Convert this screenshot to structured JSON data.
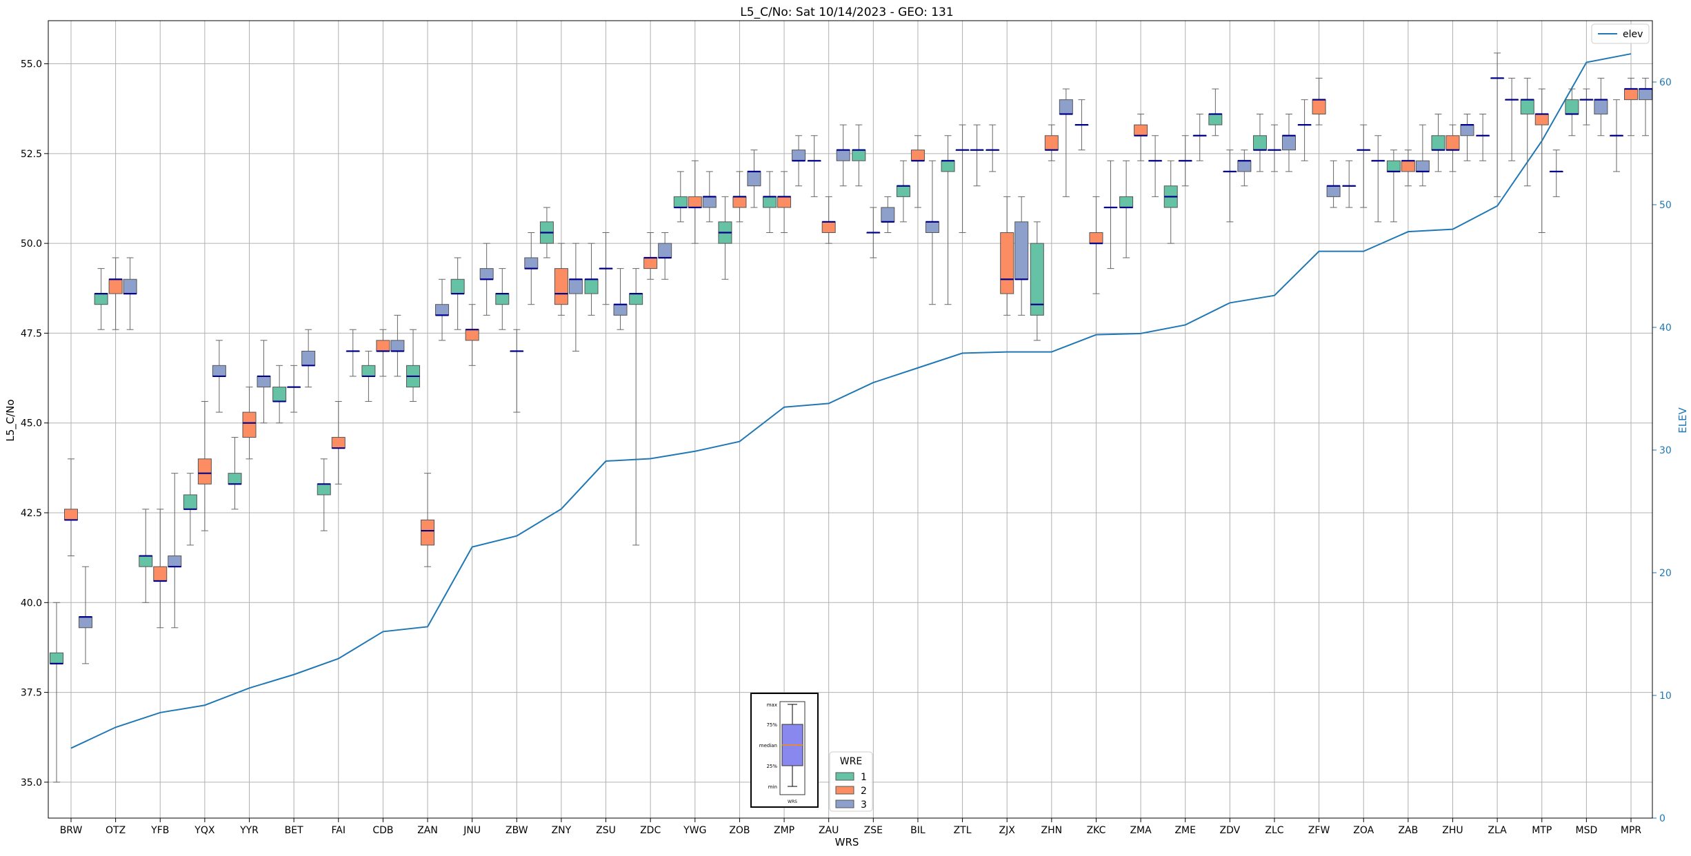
{
  "chart_data": {
    "type": "boxplot",
    "title": "L5_C/No: Sat 10/14/2023 - GEO: 131",
    "xlabel": "WRS",
    "ylabel": "L5_C/No",
    "y2label": "ELEV",
    "ylim": [
      34,
      56.2
    ],
    "y2lim": [
      0,
      65
    ],
    "yticks": [
      "35.0",
      "37.5",
      "40.0",
      "42.5",
      "45.0",
      "47.5",
      "50.0",
      "52.5",
      "55.0"
    ],
    "y2ticks": [
      "0",
      "10",
      "20",
      "30",
      "40",
      "50",
      "60"
    ],
    "grid": true,
    "categories": [
      "BRW",
      "OTZ",
      "YFB",
      "YQX",
      "YYR",
      "BET",
      "FAI",
      "CDB",
      "ZAN",
      "JNU",
      "ZBW",
      "ZNY",
      "ZSU",
      "ZDC",
      "YWG",
      "ZOB",
      "ZMP",
      "ZAU",
      "ZSE",
      "BIL",
      "ZTL",
      "ZJX",
      "ZHN",
      "ZKC",
      "ZMA",
      "ZME",
      "ZDV",
      "ZLC",
      "ZFW",
      "ZOA",
      "ZAB",
      "ZHU",
      "ZLA",
      "MTP",
      "MSD",
      "MPR"
    ],
    "colors": {
      "1": "#66c2a5",
      "2": "#fc8d62",
      "3": "#8da0cb",
      "elev": "#1f77b4",
      "median": "#00008b"
    },
    "legend_wre": {
      "title": "WRE",
      "entries": [
        "1",
        "2",
        "3"
      ],
      "location": "bottom-center"
    },
    "legend_elev": {
      "entries": [
        "elev"
      ],
      "location": "top-right"
    },
    "inset_labels": [
      "max",
      "75%",
      "median",
      "25%",
      "min"
    ],
    "inset_xlabel": "WRS",
    "boxes": [
      {
        "cat": "BRW",
        "wre": 1,
        "min": 35.0,
        "q1": 38.3,
        "median": 38.3,
        "q3": 38.6,
        "max": 40.0
      },
      {
        "cat": "BRW",
        "wre": 2,
        "min": 41.3,
        "q1": 42.3,
        "median": 42.3,
        "q3": 42.6,
        "max": 44.0
      },
      {
        "cat": "BRW",
        "wre": 3,
        "min": 38.3,
        "q1": 39.3,
        "median": 39.6,
        "q3": 39.6,
        "max": 41.0
      },
      {
        "cat": "OTZ",
        "wre": 1,
        "min": 47.6,
        "q1": 48.3,
        "median": 48.6,
        "q3": 48.6,
        "max": 49.3
      },
      {
        "cat": "OTZ",
        "wre": 2,
        "min": 47.6,
        "q1": 48.6,
        "median": 49.0,
        "q3": 49.0,
        "max": 49.6
      },
      {
        "cat": "OTZ",
        "wre": 3,
        "min": 47.6,
        "q1": 48.6,
        "median": 48.6,
        "q3": 49.0,
        "max": 49.6
      },
      {
        "cat": "YFB",
        "wre": 1,
        "min": 40.0,
        "q1": 41.0,
        "median": 41.3,
        "q3": 41.3,
        "max": 42.6
      },
      {
        "cat": "YFB",
        "wre": 2,
        "min": 39.3,
        "q1": 40.6,
        "median": 40.6,
        "q3": 41.0,
        "max": 42.6
      },
      {
        "cat": "YFB",
        "wre": 3,
        "min": 39.3,
        "q1": 41.0,
        "median": 41.0,
        "q3": 41.3,
        "max": 43.6
      },
      {
        "cat": "YQX",
        "wre": 1,
        "min": 41.6,
        "q1": 42.6,
        "median": 42.6,
        "q3": 43.0,
        "max": 43.6
      },
      {
        "cat": "YQX",
        "wre": 2,
        "min": 42.0,
        "q1": 43.3,
        "median": 43.6,
        "q3": 44.0,
        "max": 45.6
      },
      {
        "cat": "YQX",
        "wre": 3,
        "min": 45.3,
        "q1": 46.3,
        "median": 46.3,
        "q3": 46.6,
        "max": 47.3
      },
      {
        "cat": "YYR",
        "wre": 1,
        "min": 42.6,
        "q1": 43.3,
        "median": 43.3,
        "q3": 43.6,
        "max": 44.6
      },
      {
        "cat": "YYR",
        "wre": 2,
        "min": 44.0,
        "q1": 44.6,
        "median": 45.0,
        "q3": 45.3,
        "max": 46.0
      },
      {
        "cat": "YYR",
        "wre": 3,
        "min": 45.0,
        "q1": 46.0,
        "median": 46.3,
        "q3": 46.3,
        "max": 47.3
      },
      {
        "cat": "BET",
        "wre": 1,
        "min": 45.0,
        "q1": 45.6,
        "median": 45.6,
        "q3": 46.0,
        "max": 46.6
      },
      {
        "cat": "BET",
        "wre": 2,
        "min": 45.3,
        "q1": 46.0,
        "median": 46.0,
        "q3": 46.0,
        "max": 46.6
      },
      {
        "cat": "BET",
        "wre": 3,
        "min": 46.0,
        "q1": 46.6,
        "median": 46.6,
        "q3": 47.0,
        "max": 47.6
      },
      {
        "cat": "FAI",
        "wre": 1,
        "min": 42.0,
        "q1": 43.0,
        "median": 43.3,
        "q3": 43.3,
        "max": 44.0
      },
      {
        "cat": "FAI",
        "wre": 2,
        "min": 43.3,
        "q1": 44.3,
        "median": 44.3,
        "q3": 44.6,
        "max": 45.6
      },
      {
        "cat": "FAI",
        "wre": 3,
        "min": 46.3,
        "q1": 47.0,
        "median": 47.0,
        "q3": 47.0,
        "max": 47.6
      },
      {
        "cat": "CDB",
        "wre": 1,
        "min": 45.6,
        "q1": 46.3,
        "median": 46.3,
        "q3": 46.6,
        "max": 47.0
      },
      {
        "cat": "CDB",
        "wre": 2,
        "min": 46.3,
        "q1": 47.0,
        "median": 47.0,
        "q3": 47.3,
        "max": 47.6
      },
      {
        "cat": "CDB",
        "wre": 3,
        "min": 46.3,
        "q1": 47.0,
        "median": 47.0,
        "q3": 47.3,
        "max": 48.0
      },
      {
        "cat": "ZAN",
        "wre": 1,
        "min": 45.6,
        "q1": 46.0,
        "median": 46.3,
        "q3": 46.6,
        "max": 47.6
      },
      {
        "cat": "ZAN",
        "wre": 2,
        "min": 41.0,
        "q1": 41.6,
        "median": 42.0,
        "q3": 42.3,
        "max": 43.6
      },
      {
        "cat": "ZAN",
        "wre": 3,
        "min": 47.3,
        "q1": 48.0,
        "median": 48.0,
        "q3": 48.3,
        "max": 49.0
      },
      {
        "cat": "JNU",
        "wre": 1,
        "min": 47.6,
        "q1": 48.6,
        "median": 48.6,
        "q3": 49.0,
        "max": 49.6
      },
      {
        "cat": "JNU",
        "wre": 2,
        "min": 46.6,
        "q1": 47.3,
        "median": 47.6,
        "q3": 47.6,
        "max": 48.3
      },
      {
        "cat": "JNU",
        "wre": 3,
        "min": 48.0,
        "q1": 49.0,
        "median": 49.0,
        "q3": 49.3,
        "max": 50.0
      },
      {
        "cat": "ZBW",
        "wre": 1,
        "min": 47.6,
        "q1": 48.3,
        "median": 48.6,
        "q3": 48.6,
        "max": 49.3
      },
      {
        "cat": "ZBW",
        "wre": 2,
        "min": 45.3,
        "q1": 47.0,
        "median": 47.0,
        "q3": 47.0,
        "max": 47.6
      },
      {
        "cat": "ZBW",
        "wre": 3,
        "min": 48.3,
        "q1": 49.3,
        "median": 49.3,
        "q3": 49.6,
        "max": 50.3
      },
      {
        "cat": "ZNY",
        "wre": 1,
        "min": 49.6,
        "q1": 50.0,
        "median": 50.3,
        "q3": 50.6,
        "max": 51.0
      },
      {
        "cat": "ZNY",
        "wre": 2,
        "min": 48.0,
        "q1": 48.3,
        "median": 48.6,
        "q3": 49.3,
        "max": 50.0
      },
      {
        "cat": "ZNY",
        "wre": 3,
        "min": 47.0,
        "q1": 48.6,
        "median": 49.0,
        "q3": 49.0,
        "max": 50.0
      },
      {
        "cat": "ZSU",
        "wre": 1,
        "min": 48.0,
        "q1": 48.6,
        "median": 49.0,
        "q3": 49.0,
        "max": 50.0
      },
      {
        "cat": "ZSU",
        "wre": 2,
        "min": 48.3,
        "q1": 49.3,
        "median": 49.3,
        "q3": 49.3,
        "max": 50.3
      },
      {
        "cat": "ZSU",
        "wre": 3,
        "min": 47.6,
        "q1": 48.0,
        "median": 48.3,
        "q3": 48.3,
        "max": 49.3
      },
      {
        "cat": "ZDC",
        "wre": 1,
        "min": 41.6,
        "q1": 48.3,
        "median": 48.6,
        "q3": 48.6,
        "max": 49.3
      },
      {
        "cat": "ZDC",
        "wre": 2,
        "min": 49.0,
        "q1": 49.3,
        "median": 49.6,
        "q3": 49.6,
        "max": 50.3
      },
      {
        "cat": "ZDC",
        "wre": 3,
        "min": 49.0,
        "q1": 49.6,
        "median": 49.6,
        "q3": 50.0,
        "max": 50.3
      },
      {
        "cat": "YWG",
        "wre": 1,
        "min": 50.6,
        "q1": 51.0,
        "median": 51.0,
        "q3": 51.3,
        "max": 52.0
      },
      {
        "cat": "YWG",
        "wre": 2,
        "min": 50.0,
        "q1": 51.0,
        "median": 51.0,
        "q3": 51.3,
        "max": 52.3
      },
      {
        "cat": "YWG",
        "wre": 3,
        "min": 50.6,
        "q1": 51.0,
        "median": 51.3,
        "q3": 51.3,
        "max": 52.0
      },
      {
        "cat": "ZOB",
        "wre": 1,
        "min": 49.0,
        "q1": 50.0,
        "median": 50.3,
        "q3": 50.6,
        "max": 51.3
      },
      {
        "cat": "ZOB",
        "wre": 2,
        "min": 50.6,
        "q1": 51.0,
        "median": 51.3,
        "q3": 51.3,
        "max": 52.0
      },
      {
        "cat": "ZOB",
        "wre": 3,
        "min": 51.0,
        "q1": 51.6,
        "median": 52.0,
        "q3": 52.0,
        "max": 52.6
      },
      {
        "cat": "ZMP",
        "wre": 1,
        "min": 50.3,
        "q1": 51.0,
        "median": 51.3,
        "q3": 51.3,
        "max": 52.0
      },
      {
        "cat": "ZMP",
        "wre": 2,
        "min": 50.3,
        "q1": 51.0,
        "median": 51.3,
        "q3": 51.3,
        "max": 52.0
      },
      {
        "cat": "ZMP",
        "wre": 3,
        "min": 51.6,
        "q1": 52.3,
        "median": 52.3,
        "q3": 52.6,
        "max": 53.0
      },
      {
        "cat": "ZAU",
        "wre": 1,
        "min": 51.3,
        "q1": 52.3,
        "median": 52.3,
        "q3": 52.3,
        "max": 53.0
      },
      {
        "cat": "ZAU",
        "wre": 2,
        "min": 50.0,
        "q1": 50.3,
        "median": 50.6,
        "q3": 50.6,
        "max": 51.3
      },
      {
        "cat": "ZAU",
        "wre": 3,
        "min": 51.6,
        "q1": 52.3,
        "median": 52.6,
        "q3": 52.6,
        "max": 53.3
      },
      {
        "cat": "ZSE",
        "wre": 1,
        "min": 51.6,
        "q1": 52.3,
        "median": 52.6,
        "q3": 52.6,
        "max": 53.3
      },
      {
        "cat": "ZSE",
        "wre": 2,
        "min": 49.6,
        "q1": 50.3,
        "median": 50.3,
        "q3": 50.3,
        "max": 51.0
      },
      {
        "cat": "ZSE",
        "wre": 3,
        "min": 50.3,
        "q1": 50.6,
        "median": 50.6,
        "q3": 51.0,
        "max": 51.3
      },
      {
        "cat": "BIL",
        "wre": 1,
        "min": 50.6,
        "q1": 51.3,
        "median": 51.6,
        "q3": 51.6,
        "max": 52.3
      },
      {
        "cat": "BIL",
        "wre": 2,
        "min": 51.0,
        "q1": 52.3,
        "median": 52.3,
        "q3": 52.6,
        "max": 53.0
      },
      {
        "cat": "BIL",
        "wre": 3,
        "min": 48.3,
        "q1": 50.3,
        "median": 50.6,
        "q3": 50.6,
        "max": 52.3
      },
      {
        "cat": "ZTL",
        "wre": 1,
        "min": 48.3,
        "q1": 52.0,
        "median": 52.3,
        "q3": 52.3,
        "max": 53.0
      },
      {
        "cat": "ZTL",
        "wre": 2,
        "min": 50.3,
        "q1": 52.6,
        "median": 52.6,
        "q3": 52.6,
        "max": 53.3
      },
      {
        "cat": "ZTL",
        "wre": 3,
        "min": 51.6,
        "q1": 52.6,
        "median": 52.6,
        "q3": 52.6,
        "max": 53.3
      },
      {
        "cat": "ZJX",
        "wre": 1,
        "min": 52.0,
        "q1": 52.6,
        "median": 52.6,
        "q3": 52.6,
        "max": 53.3
      },
      {
        "cat": "ZJX",
        "wre": 2,
        "min": 48.0,
        "q1": 48.6,
        "median": 49.0,
        "q3": 50.3,
        "max": 51.3
      },
      {
        "cat": "ZJX",
        "wre": 3,
        "min": 48.0,
        "q1": 49.0,
        "median": 49.0,
        "q3": 50.6,
        "max": 51.3
      },
      {
        "cat": "ZHN",
        "wre": 1,
        "min": 47.3,
        "q1": 48.0,
        "median": 48.3,
        "q3": 50.0,
        "max": 50.6
      },
      {
        "cat": "ZHN",
        "wre": 2,
        "min": 52.3,
        "q1": 52.6,
        "median": 52.6,
        "q3": 53.0,
        "max": 53.3
      },
      {
        "cat": "ZHN",
        "wre": 3,
        "min": 51.3,
        "q1": 53.6,
        "median": 53.6,
        "q3": 54.0,
        "max": 54.3
      },
      {
        "cat": "ZKC",
        "wre": 1,
        "min": 52.6,
        "q1": 53.3,
        "median": 53.3,
        "q3": 53.3,
        "max": 54.0
      },
      {
        "cat": "ZKC",
        "wre": 2,
        "min": 48.6,
        "q1": 50.0,
        "median": 50.0,
        "q3": 50.3,
        "max": 51.3
      },
      {
        "cat": "ZKC",
        "wre": 3,
        "min": 49.3,
        "q1": 51.0,
        "median": 51.0,
        "q3": 51.0,
        "max": 52.3
      },
      {
        "cat": "ZMA",
        "wre": 1,
        "min": 49.6,
        "q1": 51.0,
        "median": 51.0,
        "q3": 51.3,
        "max": 52.3
      },
      {
        "cat": "ZMA",
        "wre": 2,
        "min": 52.3,
        "q1": 53.0,
        "median": 53.0,
        "q3": 53.3,
        "max": 53.6
      },
      {
        "cat": "ZMA",
        "wre": 3,
        "min": 51.3,
        "q1": 52.3,
        "median": 52.3,
        "q3": 52.3,
        "max": 53.0
      },
      {
        "cat": "ZME",
        "wre": 1,
        "min": 50.0,
        "q1": 51.0,
        "median": 51.3,
        "q3": 51.6,
        "max": 52.3
      },
      {
        "cat": "ZME",
        "wre": 2,
        "min": 51.6,
        "q1": 52.3,
        "median": 52.3,
        "q3": 52.3,
        "max": 53.0
      },
      {
        "cat": "ZME",
        "wre": 3,
        "min": 52.3,
        "q1": 53.0,
        "median": 53.0,
        "q3": 53.0,
        "max": 53.6
      },
      {
        "cat": "ZDV",
        "wre": 1,
        "min": 53.0,
        "q1": 53.3,
        "median": 53.6,
        "q3": 53.6,
        "max": 54.3
      },
      {
        "cat": "ZDV",
        "wre": 2,
        "min": 50.6,
        "q1": 52.0,
        "median": 52.0,
        "q3": 52.0,
        "max": 52.6
      },
      {
        "cat": "ZDV",
        "wre": 3,
        "min": 51.6,
        "q1": 52.0,
        "median": 52.3,
        "q3": 52.3,
        "max": 52.6
      },
      {
        "cat": "ZLC",
        "wre": 1,
        "min": 52.0,
        "q1": 52.6,
        "median": 52.6,
        "q3": 53.0,
        "max": 53.6
      },
      {
        "cat": "ZLC",
        "wre": 2,
        "min": 52.0,
        "q1": 52.6,
        "median": 52.6,
        "q3": 52.6,
        "max": 53.3
      },
      {
        "cat": "ZLC",
        "wre": 3,
        "min": 52.0,
        "q1": 52.6,
        "median": 53.0,
        "q3": 53.0,
        "max": 53.6
      },
      {
        "cat": "ZFW",
        "wre": 1,
        "min": 52.3,
        "q1": 53.3,
        "median": 53.3,
        "q3": 53.3,
        "max": 54.0
      },
      {
        "cat": "ZFW",
        "wre": 2,
        "min": 53.3,
        "q1": 53.6,
        "median": 54.0,
        "q3": 54.0,
        "max": 54.6
      },
      {
        "cat": "ZFW",
        "wre": 3,
        "min": 51.0,
        "q1": 51.3,
        "median": 51.6,
        "q3": 51.6,
        "max": 52.3
      },
      {
        "cat": "ZOA",
        "wre": 1,
        "min": 51.0,
        "q1": 51.6,
        "median": 51.6,
        "q3": 51.6,
        "max": 52.3
      },
      {
        "cat": "ZOA",
        "wre": 2,
        "min": 51.0,
        "q1": 52.6,
        "median": 52.6,
        "q3": 52.6,
        "max": 53.3
      },
      {
        "cat": "ZOA",
        "wre": 3,
        "min": 50.6,
        "q1": 52.3,
        "median": 52.3,
        "q3": 52.3,
        "max": 53.0
      },
      {
        "cat": "ZAB",
        "wre": 1,
        "min": 50.6,
        "q1": 52.0,
        "median": 52.0,
        "q3": 52.3,
        "max": 52.6
      },
      {
        "cat": "ZAB",
        "wre": 2,
        "min": 51.6,
        "q1": 52.0,
        "median": 52.3,
        "q3": 52.3,
        "max": 52.6
      },
      {
        "cat": "ZAB",
        "wre": 3,
        "min": 51.6,
        "q1": 52.0,
        "median": 52.0,
        "q3": 52.3,
        "max": 53.3
      },
      {
        "cat": "ZHU",
        "wre": 1,
        "min": 52.0,
        "q1": 52.6,
        "median": 52.6,
        "q3": 53.0,
        "max": 53.6
      },
      {
        "cat": "ZHU",
        "wre": 2,
        "min": 52.0,
        "q1": 52.6,
        "median": 52.6,
        "q3": 53.0,
        "max": 53.3
      },
      {
        "cat": "ZHU",
        "wre": 3,
        "min": 52.3,
        "q1": 53.0,
        "median": 53.3,
        "q3": 53.3,
        "max": 53.6
      },
      {
        "cat": "ZLA",
        "wre": 1,
        "min": 52.3,
        "q1": 53.0,
        "median": 53.0,
        "q3": 53.0,
        "max": 53.6
      },
      {
        "cat": "ZLA",
        "wre": 2,
        "min": 51.3,
        "q1": 54.6,
        "median": 54.6,
        "q3": 54.6,
        "max": 55.3
      },
      {
        "cat": "ZLA",
        "wre": 3,
        "min": 52.3,
        "q1": 54.0,
        "median": 54.0,
        "q3": 54.0,
        "max": 54.6
      },
      {
        "cat": "MTP",
        "wre": 1,
        "min": 51.6,
        "q1": 53.6,
        "median": 54.0,
        "q3": 54.0,
        "max": 54.6
      },
      {
        "cat": "MTP",
        "wre": 2,
        "min": 50.3,
        "q1": 53.3,
        "median": 53.6,
        "q3": 53.6,
        "max": 54.3
      },
      {
        "cat": "MTP",
        "wre": 3,
        "min": 51.3,
        "q1": 52.0,
        "median": 52.0,
        "q3": 52.0,
        "max": 52.6
      },
      {
        "cat": "MSD",
        "wre": 1,
        "min": 53.0,
        "q1": 53.6,
        "median": 53.6,
        "q3": 54.0,
        "max": 54.3
      },
      {
        "cat": "MSD",
        "wre": 2,
        "min": 53.3,
        "q1": 54.0,
        "median": 54.0,
        "q3": 54.0,
        "max": 54.3
      },
      {
        "cat": "MSD",
        "wre": 3,
        "min": 53.0,
        "q1": 53.6,
        "median": 54.0,
        "q3": 54.0,
        "max": 54.6
      },
      {
        "cat": "MPR",
        "wre": 1,
        "min": 52.0,
        "q1": 53.0,
        "median": 53.0,
        "q3": 53.0,
        "max": 54.0
      },
      {
        "cat": "MPR",
        "wre": 2,
        "min": 53.0,
        "q1": 54.0,
        "median": 54.3,
        "q3": 54.3,
        "max": 54.6
      },
      {
        "cat": "MPR",
        "wre": 3,
        "min": 53.0,
        "q1": 54.0,
        "median": 54.3,
        "q3": 54.3,
        "max": 54.6
      }
    ],
    "elev": [
      5.7,
      7.4,
      8.6,
      9.2,
      10.6,
      11.7,
      13.0,
      15.2,
      15.6,
      22.1,
      23.0,
      25.2,
      29.1,
      29.3,
      29.9,
      30.7,
      33.5,
      33.8,
      35.5,
      36.7,
      37.9,
      38.0,
      38.0,
      39.4,
      39.5,
      40.2,
      42.0,
      42.6,
      46.2,
      46.2,
      47.8,
      48.0,
      49.9,
      55.2,
      61.6,
      62.3
    ]
  }
}
